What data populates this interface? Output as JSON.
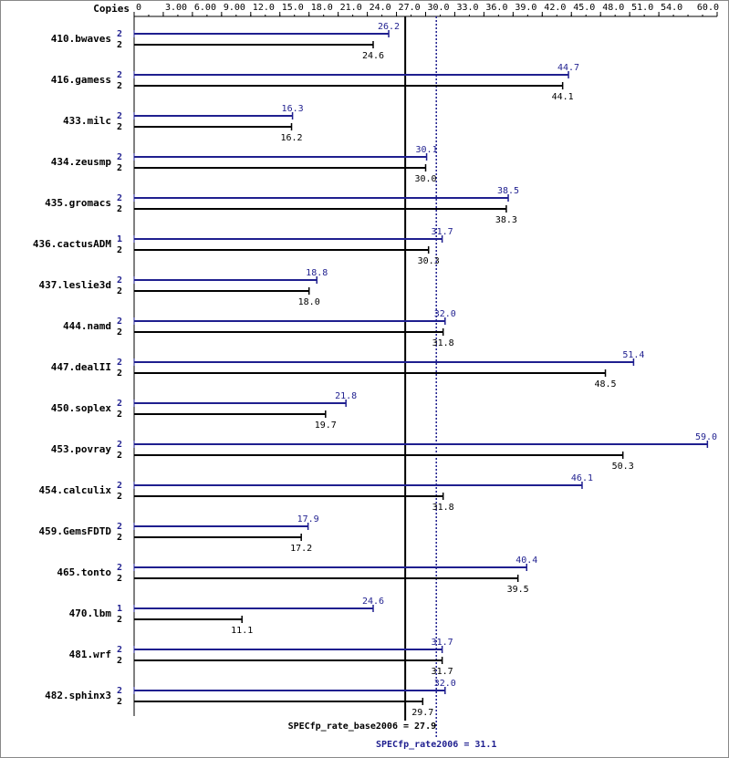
{
  "chart_data": {
    "type": "bar",
    "orientation": "horizontal",
    "copies_header": "Copies",
    "categories": [
      "410.bwaves",
      "416.gamess",
      "433.milc",
      "434.zeusmp",
      "435.gromacs",
      "436.cactusADM",
      "437.leslie3d",
      "444.namd",
      "447.dealII",
      "450.soplex",
      "453.povray",
      "454.calculix",
      "459.GemsFDTD",
      "465.tonto",
      "470.lbm",
      "481.wrf",
      "482.sphinx3"
    ],
    "series": [
      {
        "name": "SPECfp_rate2006",
        "color": "#1f1f8f",
        "copies": [
          2,
          2,
          2,
          2,
          2,
          1,
          2,
          2,
          2,
          2,
          2,
          2,
          2,
          2,
          1,
          2,
          2
        ],
        "values": [
          26.2,
          44.7,
          16.3,
          30.1,
          38.5,
          31.7,
          18.8,
          32.0,
          51.4,
          21.8,
          59.0,
          46.1,
          17.9,
          40.4,
          24.6,
          31.7,
          32.0
        ],
        "value_labels": [
          "26.2",
          "44.7",
          "16.3",
          "30.1",
          "38.5",
          "31.7",
          "18.8",
          "32.0",
          "51.4",
          "21.8",
          "59.0",
          "46.1",
          "17.9",
          "40.4",
          "24.6",
          "31.7",
          "32.0"
        ]
      },
      {
        "name": "SPECfp_rate_base2006",
        "color": "#000000",
        "copies": [
          2,
          2,
          2,
          2,
          2,
          2,
          2,
          2,
          2,
          2,
          2,
          2,
          2,
          2,
          2,
          2,
          2
        ],
        "values": [
          24.6,
          44.1,
          16.2,
          30.0,
          38.3,
          30.3,
          18.0,
          31.8,
          48.5,
          19.7,
          50.3,
          31.8,
          17.2,
          39.5,
          11.1,
          31.7,
          29.7
        ],
        "value_labels": [
          "24.6",
          "44.1",
          "16.2",
          "30.0",
          "38.3",
          "30.3",
          "18.0",
          "31.8",
          "48.5",
          "19.7",
          "50.3",
          "31.8",
          "17.2",
          "39.5",
          "11.1",
          "31.7",
          "29.7"
        ]
      }
    ],
    "reference_lines": [
      {
        "label": "SPECfp_rate_base2006 = 27.9",
        "value": 27.9,
        "color": "#000000",
        "style": "solid"
      },
      {
        "label": "SPECfp_rate2006 = 31.1",
        "value": 31.1,
        "color": "#1f1f8f",
        "style": "dotted"
      }
    ],
    "xlim": [
      0,
      60
    ],
    "xticks": [
      0,
      {
        "value": 3,
        "label": "3.00"
      },
      {
        "value": 6,
        "label": "6.00"
      },
      {
        "value": 9,
        "label": "9.00"
      },
      {
        "value": 12,
        "label": "12.0"
      },
      {
        "value": 15,
        "label": "15.0"
      },
      {
        "value": 18,
        "label": "18.0"
      },
      {
        "value": 21,
        "label": "21.0"
      },
      {
        "value": 24,
        "label": "24.0"
      },
      {
        "value": 27,
        "label": "27.0"
      },
      {
        "value": 30,
        "label": "30.0"
      },
      {
        "value": 33,
        "label": "33.0"
      },
      {
        "value": 36,
        "label": "36.0"
      },
      {
        "value": 39,
        "label": "39.0"
      },
      {
        "value": 42,
        "label": "42.0"
      },
      {
        "value": 45,
        "label": "45.0"
      },
      {
        "value": 48,
        "label": "48.0"
      },
      {
        "value": 51,
        "label": "51.0"
      },
      {
        "value": 54,
        "label": "54.0"
      },
      {
        "value": 60,
        "label": "60.0"
      }
    ]
  }
}
